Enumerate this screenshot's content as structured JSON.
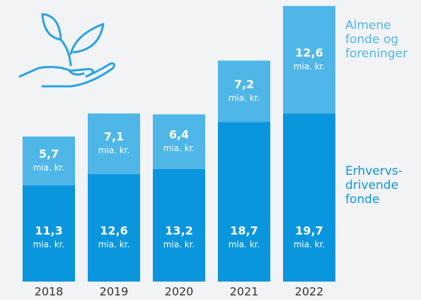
{
  "chart_data": {
    "type": "stacked_bar",
    "categories": [
      "2018",
      "2019",
      "2020",
      "2021",
      "2022"
    ],
    "unit_label": "mia. kr.",
    "series": [
      {
        "name": "Erhvervs­drivende fonde",
        "color": "#0a96dc",
        "values": [
          11.3,
          12.6,
          13.2,
          18.7,
          19.7
        ],
        "value_labels": [
          "11,3",
          "12,6",
          "13,2",
          "18,7",
          "19,7"
        ]
      },
      {
        "name": "Almene fonde og foreninger",
        "color": "#4fb6e8",
        "values": [
          5.7,
          7.1,
          6.4,
          7.2,
          12.6
        ],
        "value_labels": [
          "5,7",
          "7,1",
          "6,4",
          "7,2",
          "12,6"
        ]
      }
    ],
    "ylim": [
      0,
      33
    ]
  }
}
